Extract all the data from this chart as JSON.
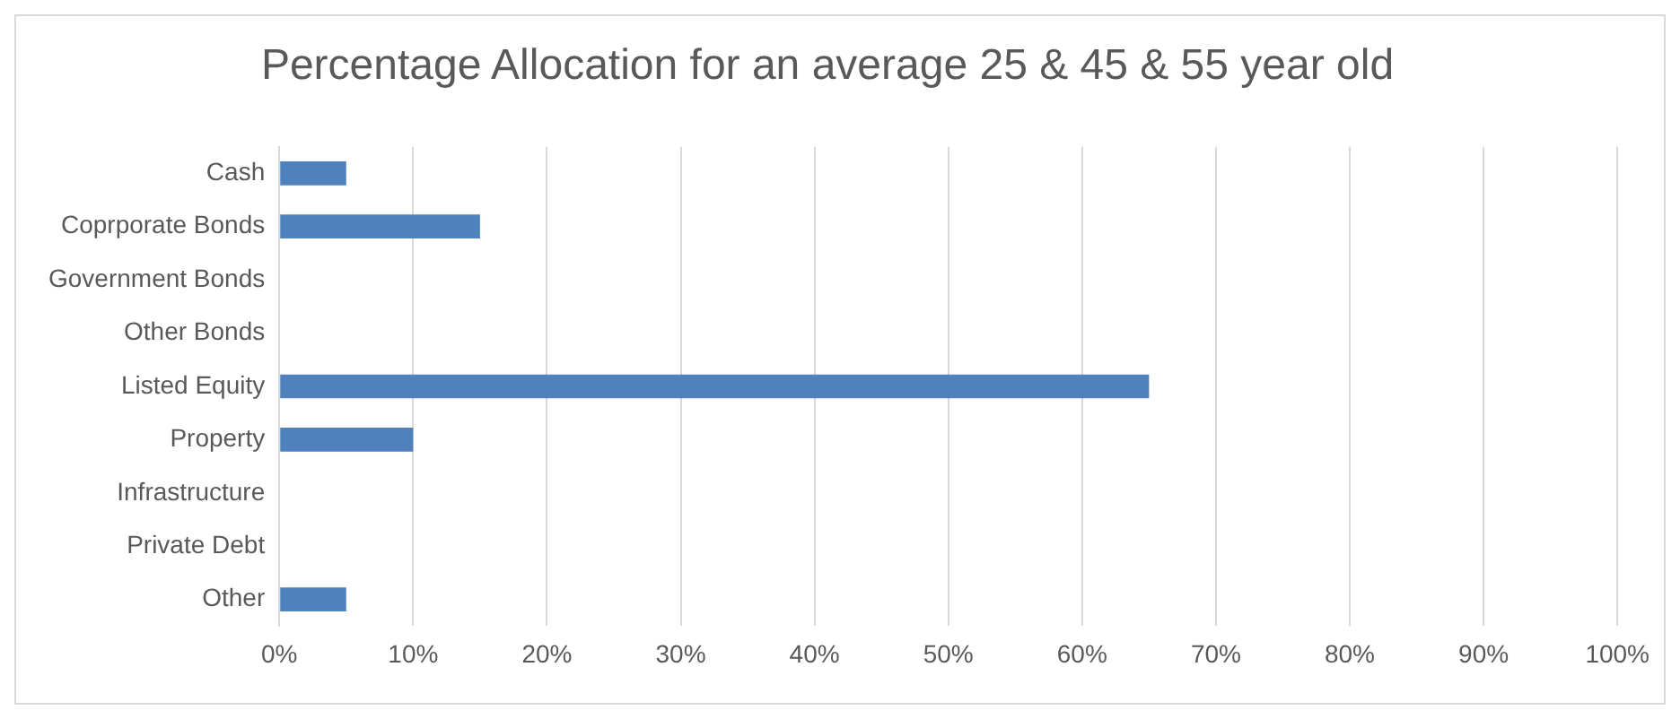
{
  "chart_data": {
    "type": "bar",
    "orientation": "horizontal",
    "title": "Percentage Allocation for an average 25 & 45 & 55 year old",
    "categories": [
      "Cash",
      "Coprporate Bonds",
      "Government Bonds",
      "Other Bonds",
      "Listed Equity",
      "Property",
      "Infrastructure",
      "Private Debt",
      "Other"
    ],
    "values": [
      5,
      15,
      0,
      0,
      65,
      10,
      0,
      0,
      5
    ],
    "color": "#4f81bd",
    "xlim": [
      0,
      100
    ],
    "xticks": [
      {
        "value": 0,
        "label": "0%"
      },
      {
        "value": 10,
        "label": "10%"
      },
      {
        "value": 20,
        "label": "20%"
      },
      {
        "value": 30,
        "label": "30%"
      },
      {
        "value": 40,
        "label": "40%"
      },
      {
        "value": 50,
        "label": "50%"
      },
      {
        "value": 60,
        "label": "60%"
      },
      {
        "value": 70,
        "label": "70%"
      },
      {
        "value": 80,
        "label": "80%"
      },
      {
        "value": 90,
        "label": "90%"
      },
      {
        "value": 100,
        "label": "100%"
      }
    ],
    "grid": "x",
    "legend": false
  }
}
